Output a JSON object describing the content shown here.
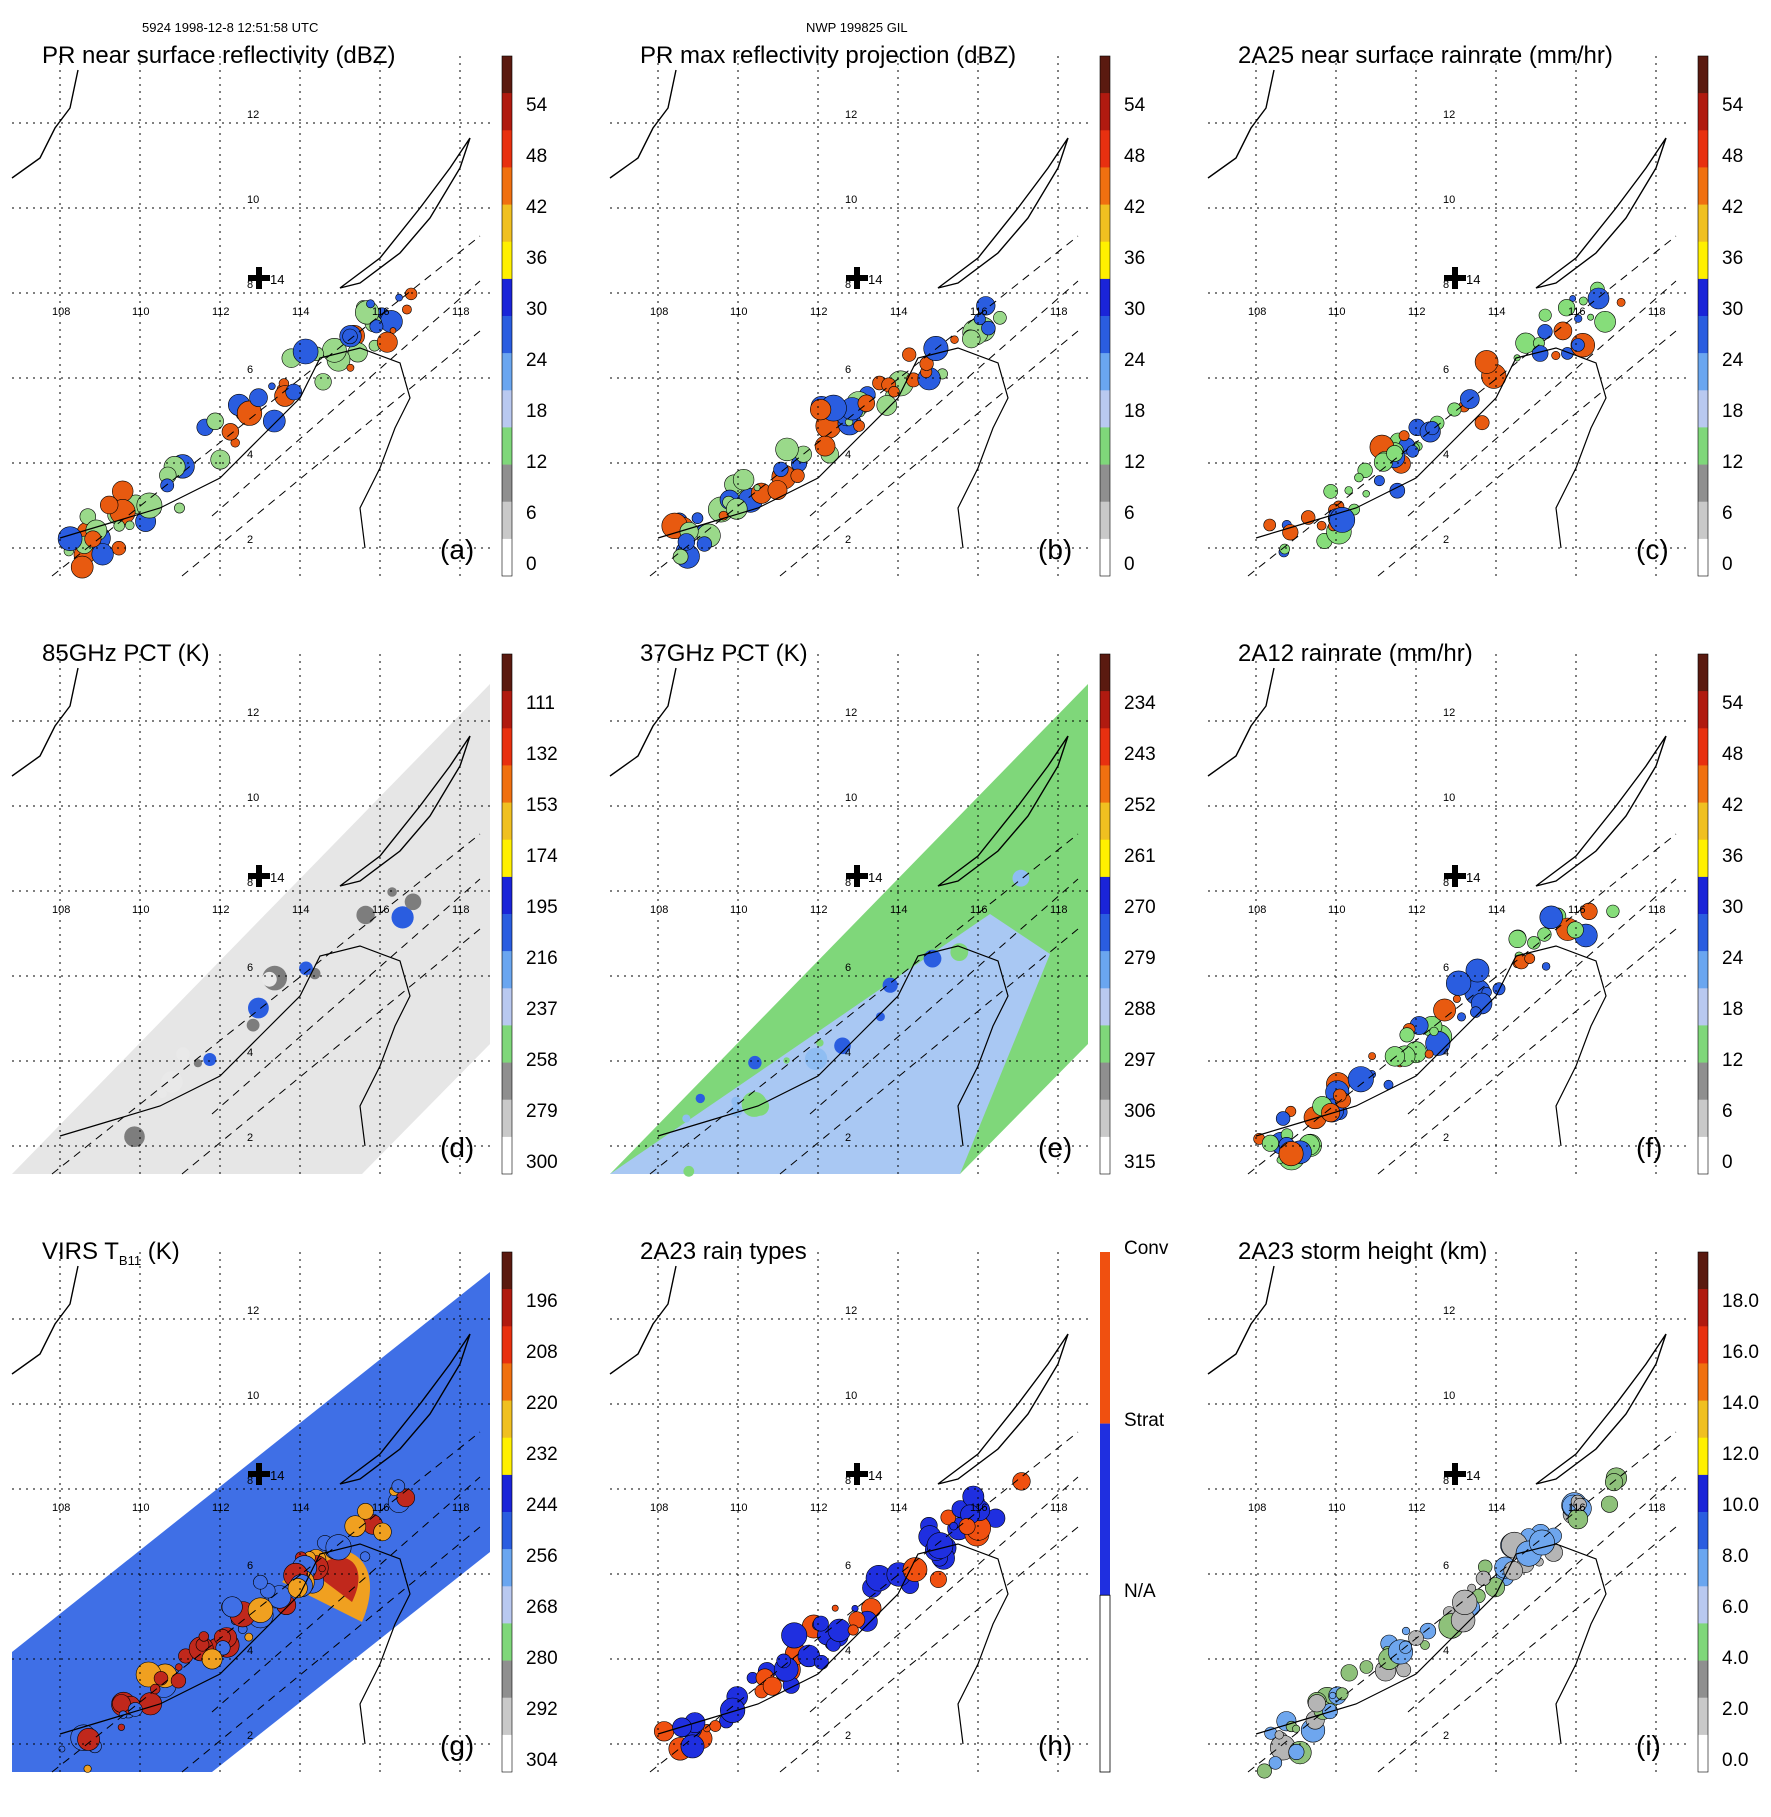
{
  "header": {
    "orbit_time": "5924 1998-12-8 12:51:58 UTC",
    "site": "NWP 199825 GIL"
  },
  "map": {
    "lon_labels": [
      "108",
      "110",
      "112",
      "114",
      "116",
      "118"
    ],
    "lat_labels": [
      "2",
      "4",
      "6",
      "8",
      "10",
      "12"
    ],
    "site_marker_label": "14"
  },
  "panels": [
    {
      "id": "a",
      "title": "PR near surface reflectivity (dBZ)",
      "label": "(a)",
      "colorbar": [
        "54",
        "48",
        "42",
        "36",
        "30",
        "24",
        "18",
        "12",
        "6",
        "0"
      ],
      "colors": {
        "low": "#9ad98a",
        "mid": "#2a5de0",
        "high": "#e85a10"
      }
    },
    {
      "id": "b",
      "title": "PR max reflectivity projection (dBZ)",
      "label": "(b)",
      "colorbar": [
        "54",
        "48",
        "42",
        "36",
        "30",
        "24",
        "18",
        "12",
        "6",
        "0"
      ],
      "colors": {
        "low": "#9ad98a",
        "mid": "#2a5de0",
        "high": "#e85a10"
      }
    },
    {
      "id": "c",
      "title": "2A25 near surface rainrate (mm/hr)",
      "label": "(c)",
      "colorbar": [
        "54",
        "48",
        "42",
        "36",
        "30",
        "24",
        "18",
        "12",
        "6",
        "0"
      ],
      "colors": {
        "low": "#86dd7a",
        "mid": "#2a5de0",
        "high": "#e85a10"
      }
    },
    {
      "id": "d",
      "title": "85GHz PCT (K)",
      "label": "(d)",
      "colorbar": [
        "111",
        "132",
        "153",
        "174",
        "195",
        "216",
        "237",
        "258",
        "279",
        "300"
      ],
      "colors": {
        "low": "#e9e9e9",
        "mid": "#7d7d7d",
        "high": "#2a5de0"
      }
    },
    {
      "id": "e",
      "title": "37GHz PCT (K)",
      "label": "(e)",
      "colorbar": [
        "234",
        "243",
        "252",
        "261",
        "270",
        "279",
        "288",
        "297",
        "306",
        "315"
      ],
      "colors": {
        "low": "#7fd77a",
        "mid": "#8fbdf2",
        "high": "#2a5de0"
      }
    },
    {
      "id": "f",
      "title": "2A12 rainrate (mm/hr)",
      "label": "(f)",
      "colorbar": [
        "54",
        "48",
        "42",
        "36",
        "30",
        "24",
        "18",
        "12",
        "6",
        "0"
      ],
      "colors": {
        "low": "#86dd7a",
        "mid": "#2a5de0",
        "high": "#e85a10"
      }
    },
    {
      "id": "g",
      "title": "VIRS T",
      "title_sub": "B11",
      "title_suffix": " (K)",
      "label": "(g)",
      "colorbar": [
        "196",
        "208",
        "220",
        "232",
        "244",
        "256",
        "268",
        "280",
        "292",
        "304"
      ],
      "colors": {
        "low": "#3f6fe6",
        "mid": "#f0a020",
        "high": "#c0281c"
      }
    },
    {
      "id": "h",
      "title": "2A23 rain types",
      "label": "(h)",
      "colorbar": [
        "Conv",
        "Strat",
        "N/A"
      ],
      "colors": {
        "low": "#1f2fe0",
        "mid": "#1f2fe0",
        "high": "#f05010"
      }
    },
    {
      "id": "i",
      "title": "2A23 storm height (km)",
      "label": "(i)",
      "colorbar": [
        "18.0",
        "16.0",
        "14.0",
        "12.0",
        "10.0",
        "8.0",
        "6.0",
        "4.0",
        "2.0",
        "0.0"
      ],
      "colors": {
        "low": "#b5b5b5",
        "mid": "#8ec17a",
        "high": "#6ea6ee"
      }
    }
  ]
}
